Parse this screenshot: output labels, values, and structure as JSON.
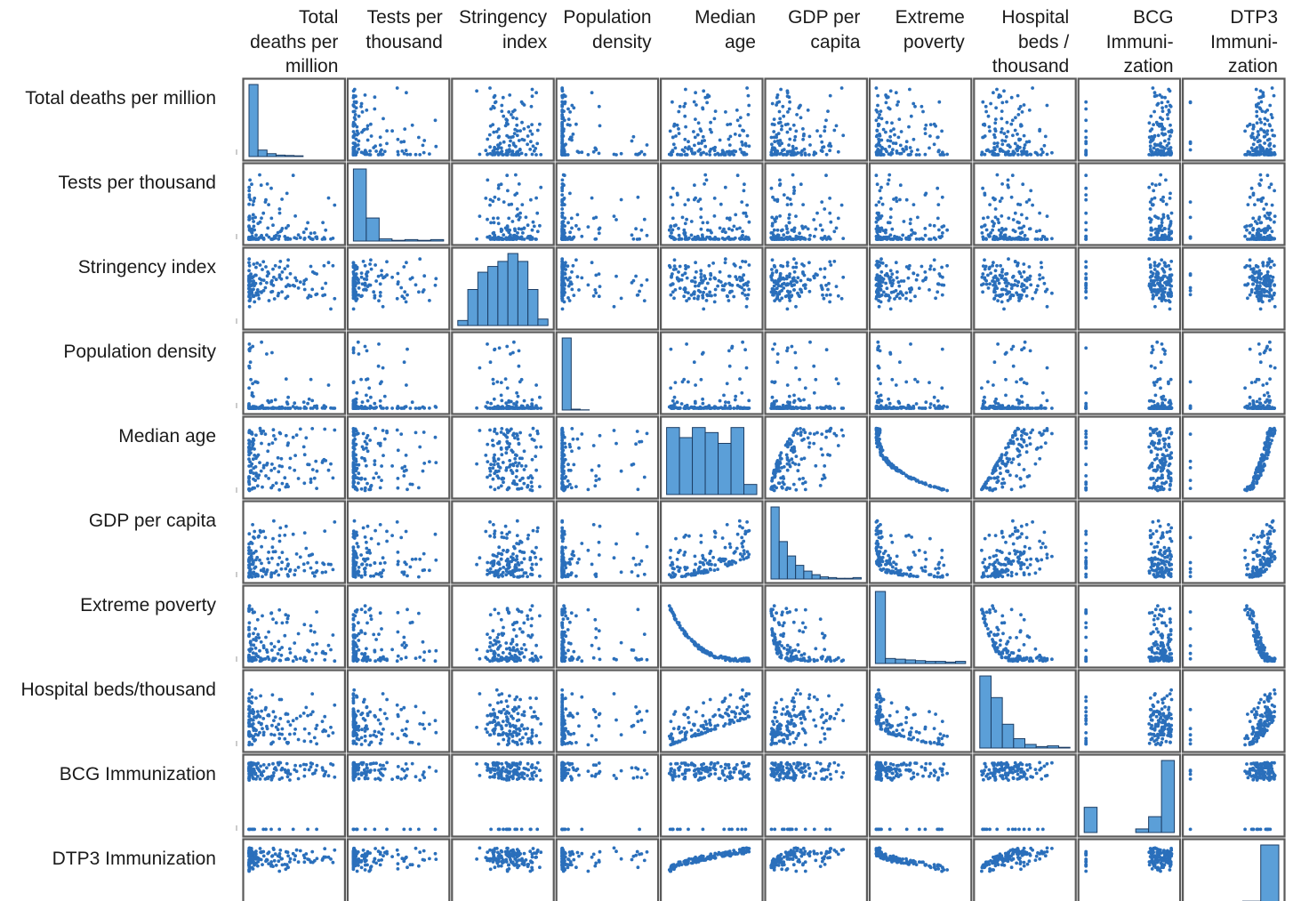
{
  "chart_data": {
    "type": "scatter",
    "subtype": "scatter-matrix",
    "variables": [
      "Total deaths per million",
      "Tests per thousand",
      "Stringency index",
      "Population density",
      "Median age",
      "GDP per capita",
      "Extreme poverty",
      "Hospital beds/thousand",
      "BCG Immunization",
      "DTP3 Immunization"
    ],
    "column_labels": [
      "Total\ndeaths per\nmillion",
      "Tests per\nthousand",
      "Stringency\nindex",
      "Population\ndensity",
      "Median\nage",
      "GDP per\ncapita",
      "Extreme\npoverty",
      "Hospital\nbeds /\nthousand",
      "BCG\nImmuni-\nzation",
      "DTP3\nImmuni-\nzation"
    ],
    "row_labels": [
      "Total deaths per million",
      "Tests per thousand",
      "Stringency index",
      "Population density",
      "Median age",
      "GDP per capita",
      "Extreme poverty",
      "Hospital beds/thousand",
      "BCG Immunization",
      "DTP3 Immunization"
    ],
    "diagonal": "histogram",
    "off_diagonal": "scatter",
    "histograms": [
      [
        1.0,
        0.09,
        0.04,
        0.02,
        0.015,
        0.01,
        0,
        0,
        0,
        0
      ],
      [
        1.0,
        0.32,
        0.03,
        0.01,
        0.02,
        0.01,
        0.02
      ],
      [
        0.07,
        0.5,
        0.74,
        0.82,
        0.89,
        1.0,
        0.89,
        0.5,
        0.09
      ],
      [
        1.0,
        0.012,
        0.003,
        0,
        0,
        0,
        0,
        0,
        0,
        0
      ],
      [
        0.93,
        0.79,
        0.93,
        0.86,
        0.71,
        0.93,
        0.14
      ],
      [
        1.0,
        0.52,
        0.32,
        0.19,
        0.11,
        0.06,
        0.03,
        0.02,
        0.01,
        0.01,
        0.02
      ],
      [
        1.0,
        0.07,
        0.06,
        0.05,
        0.04,
        0.03,
        0.03,
        0.02,
        0.03
      ],
      [
        1.0,
        0.7,
        0.33,
        0.13,
        0.05,
        0.02,
        0.03,
        0.01
      ],
      [
        0.35,
        0,
        0,
        0,
        0.05,
        0.22,
        1.0
      ],
      [
        0.15,
        0.05,
        0.08,
        0.22,
        1.0
      ]
    ],
    "colors": {
      "marker": "#2a6fbb",
      "bar_fill": "#5b9fd8",
      "bar_edge": "#1c3d64",
      "frame": "#5a5a5a"
    },
    "grid": false,
    "legend": "none"
  }
}
